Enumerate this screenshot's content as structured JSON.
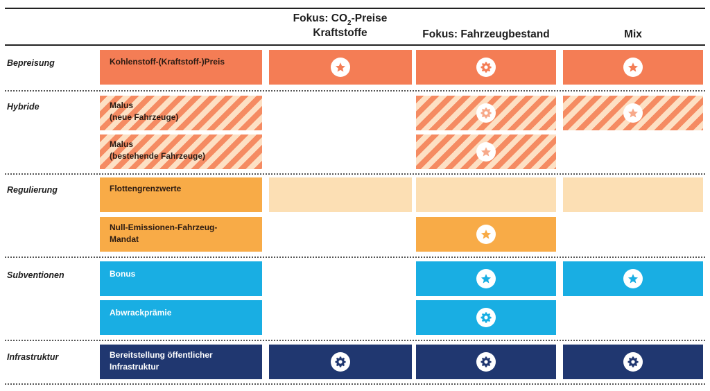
{
  "columns": {
    "co2_prefix": "Fokus: CO",
    "co2_sub": "2",
    "co2_suffix": "-Preise",
    "co2_line2": "Kraftstoffe",
    "fleet": "Fokus: Fahrzeugbestand",
    "mix": "Mix"
  },
  "categories": {
    "bepreisung": "Bepreisung",
    "hybride": "Hybride",
    "regulierung": "Regulierung",
    "subventionen": "Subventionen",
    "infrastruktur": "Infrastruktur"
  },
  "instruments": {
    "carbon_price": "Kohlenstoff-(Kraftstoff-)Preis",
    "malus_new_1": "Malus",
    "malus_new_2": "(neue Fahrzeuge)",
    "malus_existing_1": "Malus",
    "malus_existing_2": "(bestehende Fahrzeuge)",
    "fleet_limits": "Flottengrenzwerte",
    "zev_mandate_1": "Null-Emissionen-Fahrzeug-",
    "zev_mandate_2": "Mandat",
    "bonus": "Bonus",
    "scrappage": "Abwrackprämie",
    "infra_1": "Bereitstellung öffentlicher",
    "infra_2": "Infrastruktur"
  },
  "icons": {
    "star": "star-icon",
    "gear": "gear-icon"
  },
  "colors": {
    "pricing": "#f47d55",
    "hybrid_stripe": "#f58b62",
    "hybrid_stripe_light": "#fde0c4",
    "regulation": "#f8ab47",
    "regulation_pale": "#fcdfb4",
    "subsidies": "#19aee3",
    "infrastructure": "#203770"
  }
}
